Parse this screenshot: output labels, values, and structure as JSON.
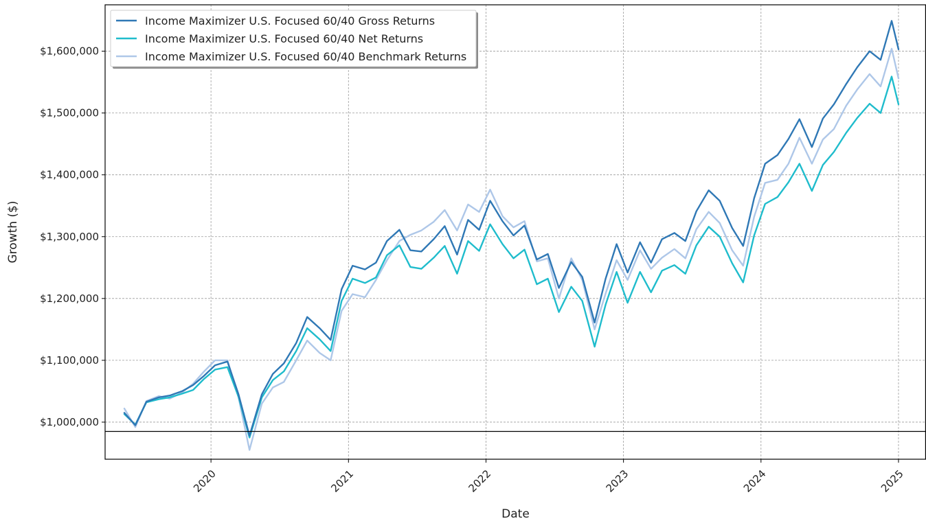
{
  "chart_data": {
    "type": "line",
    "xlabel": "Date",
    "ylabel": "Growth ($)",
    "xlim": [
      2019.23,
      2025.2
    ],
    "ylim": [
      940000,
      1675000
    ],
    "x_ticks": [
      {
        "value": 2020,
        "label": "2020"
      },
      {
        "value": 2021,
        "label": "2021"
      },
      {
        "value": 2022,
        "label": "2022"
      },
      {
        "value": 2023,
        "label": "2023"
      },
      {
        "value": 2024,
        "label": "2024"
      },
      {
        "value": 2025,
        "label": "2025"
      }
    ],
    "y_ticks": [
      {
        "value": 1000000,
        "label": "$1,000,000"
      },
      {
        "value": 1100000,
        "label": "$1,100,000"
      },
      {
        "value": 1200000,
        "label": "$1,200,000"
      },
      {
        "value": 1300000,
        "label": "$1,300,000"
      },
      {
        "value": 1400000,
        "label": "$1,400,000"
      },
      {
        "value": 1500000,
        "label": "$1,500,000"
      },
      {
        "value": 1600000,
        "label": "$1,600,000"
      }
    ],
    "reference_line": 985000,
    "grid": true,
    "legend_position": "top-left",
    "x": [
      2019.37,
      2019.45,
      2019.53,
      2019.62,
      2019.7,
      2019.79,
      2019.87,
      2019.95,
      2020.03,
      2020.12,
      2020.2,
      2020.28,
      2020.37,
      2020.45,
      2020.53,
      2020.62,
      2020.7,
      2020.79,
      2020.87,
      2020.95,
      2021.03,
      2021.12,
      2021.2,
      2021.28,
      2021.37,
      2021.45,
      2021.53,
      2021.62,
      2021.7,
      2021.79,
      2021.87,
      2021.95,
      2022.03,
      2022.12,
      2022.2,
      2022.28,
      2022.37,
      2022.45,
      2022.53,
      2022.62,
      2022.7,
      2022.79,
      2022.87,
      2022.95,
      2023.03,
      2023.12,
      2023.2,
      2023.28,
      2023.37,
      2023.45,
      2023.53,
      2023.62,
      2023.7,
      2023.79,
      2023.87,
      2023.95,
      2024.03,
      2024.12,
      2024.2,
      2024.28,
      2024.37,
      2024.45,
      2024.53,
      2024.62,
      2024.7,
      2024.79,
      2024.87,
      2024.95,
      2025.0
    ],
    "series": [
      {
        "name": "Income Maximizer U.S. Focused 60/40 Gross Returns",
        "color": "#2f78b5",
        "values": [
          1015000,
          995000,
          1033000,
          1040000,
          1043000,
          1050000,
          1060000,
          1075000,
          1092000,
          1098000,
          1045000,
          978000,
          1045000,
          1078000,
          1095000,
          1128000,
          1170000,
          1152000,
          1133000,
          1215000,
          1253000,
          1247000,
          1258000,
          1293000,
          1311000,
          1278000,
          1276000,
          1296000,
          1317000,
          1271000,
          1327000,
          1311000,
          1358000,
          1325000,
          1302000,
          1318000,
          1263000,
          1272000,
          1217000,
          1259000,
          1235000,
          1161000,
          1232000,
          1288000,
          1242000,
          1291000,
          1258000,
          1296000,
          1306000,
          1293000,
          1341000,
          1375000,
          1358000,
          1314000,
          1285000,
          1362000,
          1418000,
          1432000,
          1458000,
          1490000,
          1445000,
          1491000,
          1514000,
          1547000,
          1574000,
          1600000,
          1586000,
          1649000,
          1603000
        ]
      },
      {
        "name": "Income Maximizer U.S. Focused 60/40 Net Returns",
        "color": "#1fbccc",
        "values": [
          1013000,
          996000,
          1032000,
          1037000,
          1040000,
          1046000,
          1052000,
          1070000,
          1085000,
          1089000,
          1041000,
          975000,
          1040000,
          1068000,
          1082000,
          1115000,
          1152000,
          1134000,
          1115000,
          1196000,
          1232000,
          1225000,
          1234000,
          1270000,
          1286000,
          1251000,
          1248000,
          1266000,
          1285000,
          1240000,
          1293000,
          1277000,
          1320000,
          1288000,
          1265000,
          1279000,
          1223000,
          1232000,
          1178000,
          1219000,
          1196000,
          1122000,
          1190000,
          1243000,
          1193000,
          1243000,
          1210000,
          1245000,
          1254000,
          1240000,
          1286000,
          1316000,
          1300000,
          1257000,
          1226000,
          1302000,
          1353000,
          1364000,
          1388000,
          1418000,
          1374000,
          1416000,
          1437000,
          1468000,
          1492000,
          1515000,
          1500000,
          1559000,
          1514000
        ]
      },
      {
        "name": "Income Maximizer U.S. Focused 60/40 Benchmark Returns",
        "color": "#aec7e8",
        "values": [
          1022000,
          992000,
          1034000,
          1042000,
          1038000,
          1048000,
          1062000,
          1082000,
          1100000,
          1100000,
          1040000,
          955000,
          1030000,
          1056000,
          1065000,
          1100000,
          1132000,
          1112000,
          1100000,
          1180000,
          1207000,
          1202000,
          1230000,
          1262000,
          1293000,
          1303000,
          1310000,
          1324000,
          1343000,
          1310000,
          1352000,
          1340000,
          1376000,
          1333000,
          1315000,
          1325000,
          1260000,
          1265000,
          1200000,
          1265000,
          1230000,
          1150000,
          1208000,
          1262000,
          1230000,
          1278000,
          1248000,
          1266000,
          1280000,
          1265000,
          1312000,
          1340000,
          1322000,
          1278000,
          1253000,
          1332000,
          1387000,
          1392000,
          1418000,
          1460000,
          1418000,
          1457000,
          1474000,
          1512000,
          1538000,
          1563000,
          1543000,
          1604000,
          1556000
        ]
      }
    ]
  }
}
